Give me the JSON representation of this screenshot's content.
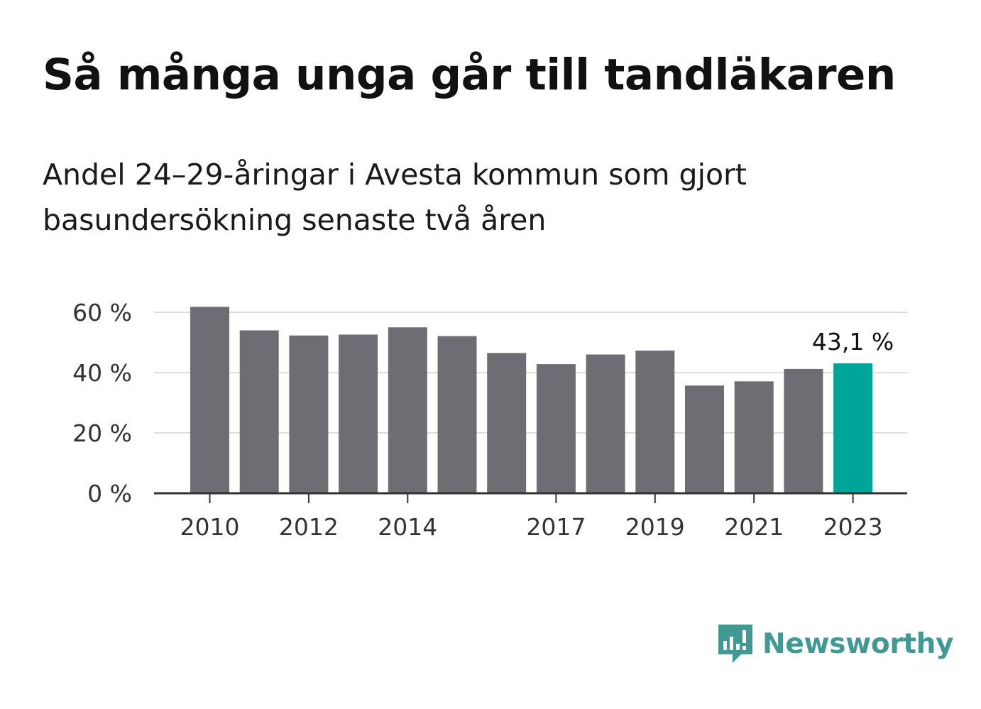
{
  "header": {
    "title": "Så många unga går till tandläkaren",
    "subtitle": "Andel 24–29-åringar i Avesta kommun som gjort basundersökning senaste två åren"
  },
  "brand": {
    "name": "Newsworthy",
    "icon": "newsworthy-logo-icon",
    "color": "#3f9a94"
  },
  "chart_data": {
    "type": "bar",
    "categories": [
      "2010",
      "2011",
      "2012",
      "2013",
      "2014",
      "2015",
      "2016",
      "2017",
      "2018",
      "2019",
      "2020",
      "2021",
      "2022",
      "2023"
    ],
    "values": [
      61.8,
      54.0,
      52.3,
      52.6,
      55.0,
      52.1,
      46.5,
      42.8,
      46.0,
      47.3,
      35.7,
      37.1,
      41.2,
      43.1
    ],
    "x_tick_labels": [
      "2010",
      "2012",
      "2014",
      "2017",
      "2019",
      "2021",
      "2023"
    ],
    "y_ticks": [
      0,
      20,
      40,
      60
    ],
    "y_tick_labels": [
      "0 %",
      "20 %",
      "40 %",
      "60 %"
    ],
    "ylim": [
      0,
      60
    ],
    "grid": true,
    "highlight": {
      "category": "2023",
      "label": "43,1 %"
    },
    "colors": {
      "bar": "#6e6d73",
      "highlight": "#00a59a",
      "grid": "#dddddd",
      "axis": "#333333",
      "tick_text": "#333333"
    }
  }
}
